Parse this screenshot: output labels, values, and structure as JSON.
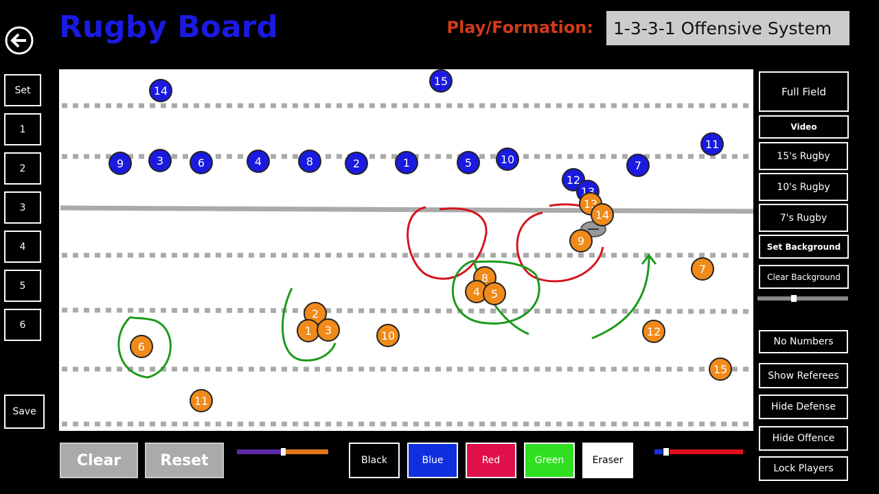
{
  "header": {
    "title": "Rugby Board",
    "play_label": "Play/Formation:",
    "play_value": "1-3-3-1 Offensive System"
  },
  "left_buttons": [
    "Set",
    "1",
    "2",
    "3",
    "4",
    "5",
    "6",
    "Save"
  ],
  "right_buttons": [
    "Full Field",
    "Video",
    "15's Rugby",
    "10's Rugby",
    "7's Rugby",
    "Set Background",
    "Clear Background",
    "No Numbers",
    "Show Referees",
    "Hide Defense",
    "Hide Offence",
    "Lock Players"
  ],
  "bottom_buttons": [
    "Clear",
    "Reset"
  ],
  "pen_colors": [
    "Black",
    "Blue",
    "Red",
    "Green",
    "Eraser"
  ],
  "defense_players": [
    "14",
    "15",
    "9",
    "3",
    "6",
    "4",
    "8",
    "2",
    "1",
    "5",
    "10",
    "7",
    "11",
    "12",
    "13"
  ],
  "offense_players": [
    "13",
    "14",
    "9",
    "8",
    "4",
    "5",
    "2",
    "1",
    "3",
    "10",
    "6",
    "11",
    "12",
    "7",
    "15"
  ]
}
